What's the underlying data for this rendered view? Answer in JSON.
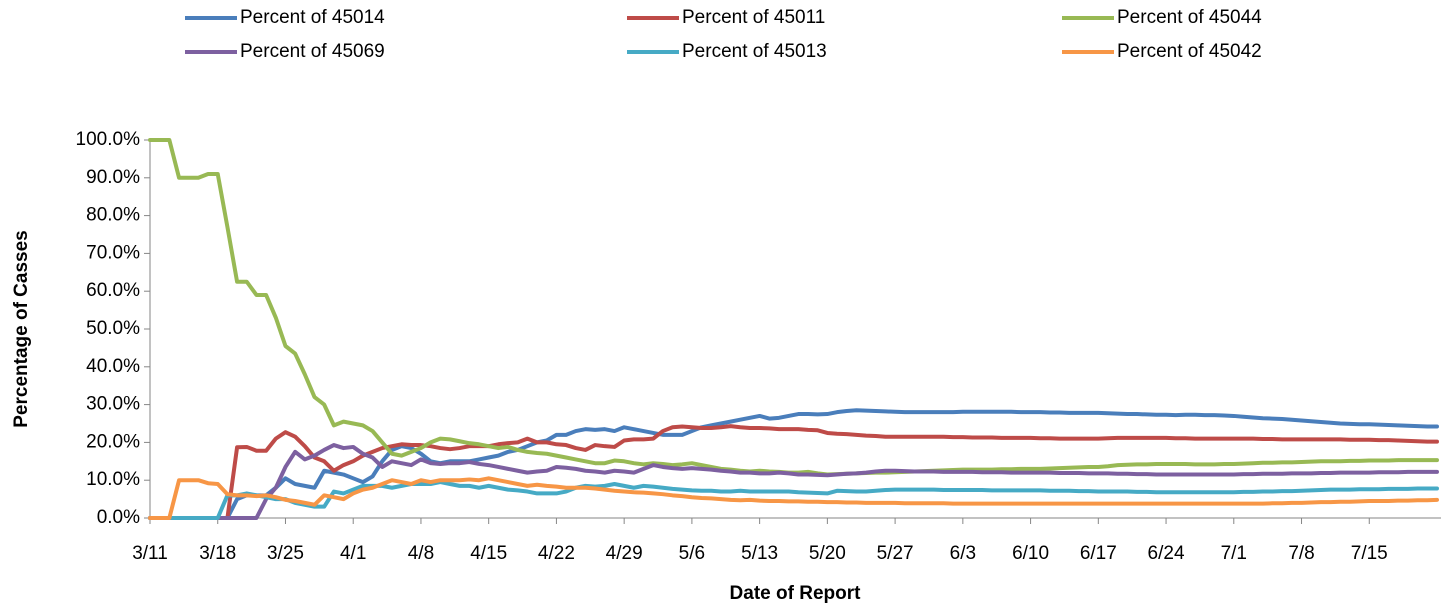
{
  "chart_data": {
    "type": "line",
    "x_label": "Date of Report",
    "y_label": "Percentage of Casses",
    "legend": "top",
    "grid": false,
    "ylim": [
      0,
      100
    ],
    "yticks": [
      {
        "value": 0,
        "label": "0.0%"
      },
      {
        "value": 10,
        "label": "10.0%"
      },
      {
        "value": 20,
        "label": "20.0%"
      },
      {
        "value": 30,
        "label": "30.0%"
      },
      {
        "value": 40,
        "label": "40.0%"
      },
      {
        "value": 50,
        "label": "50.0%"
      },
      {
        "value": 60,
        "label": "60.0%"
      },
      {
        "value": 70,
        "label": "70.0%"
      },
      {
        "value": 80,
        "label": "80.0%"
      },
      {
        "value": 90,
        "label": "90.0%"
      },
      {
        "value": 100,
        "label": "100.0%"
      }
    ],
    "categories": [
      "3/11",
      null,
      null,
      null,
      null,
      null,
      null,
      "3/18",
      null,
      null,
      null,
      null,
      null,
      null,
      "3/25",
      null,
      null,
      null,
      null,
      null,
      null,
      "4/1",
      null,
      null,
      null,
      null,
      null,
      null,
      "4/8",
      null,
      null,
      null,
      null,
      null,
      null,
      "4/15",
      null,
      null,
      null,
      null,
      null,
      null,
      "4/22",
      null,
      null,
      null,
      null,
      null,
      null,
      "4/29",
      null,
      null,
      null,
      null,
      null,
      null,
      "5/6",
      null,
      null,
      null,
      null,
      null,
      null,
      "5/13",
      null,
      null,
      null,
      null,
      null,
      null,
      "5/20",
      null,
      null,
      null,
      null,
      null,
      null,
      "5/27",
      null,
      null,
      null,
      null,
      null,
      null,
      "6/3",
      null,
      null,
      null,
      null,
      null,
      null,
      "6/10",
      null,
      null,
      null,
      null,
      null,
      null,
      "6/17",
      null,
      null,
      null,
      null,
      null,
      null,
      "6/24",
      null,
      null,
      null,
      null,
      null,
      null,
      "7/1",
      null,
      null,
      null,
      null,
      null,
      null,
      "7/8",
      null,
      null,
      null,
      null,
      null,
      null,
      "7/15",
      null,
      null,
      null,
      null,
      null,
      null,
      null
    ],
    "series": [
      {
        "name": "Percent of 45014",
        "color": "#4a7ebb",
        "values": [
          0,
          0,
          0,
          0,
          0,
          0,
          0,
          0,
          0,
          5,
          6,
          6,
          6,
          8,
          10.5,
          9,
          8.5,
          8,
          12.5,
          12,
          11.5,
          10.5,
          9.5,
          11,
          15,
          18,
          19,
          18.5,
          17,
          15,
          14.5,
          15,
          15,
          15,
          15.5,
          16,
          16.5,
          17.5,
          18,
          19,
          20,
          20.5,
          22,
          22,
          23,
          23.5,
          23.3,
          23.5,
          23,
          24,
          23.5,
          23,
          22.5,
          22,
          22,
          22,
          23,
          24,
          24.5,
          25,
          25.5,
          26,
          26.5,
          27,
          26.3,
          26.5,
          27,
          27.5,
          27.5,
          27.4,
          27.5,
          28,
          28.3,
          28.5,
          28.4,
          28.3,
          28.2,
          28.1,
          28,
          28,
          28,
          28,
          28,
          28,
          28.1,
          28.1,
          28.1,
          28.1,
          28.1,
          28.1,
          28,
          28,
          28,
          27.9,
          27.9,
          27.8,
          27.8,
          27.8,
          27.8,
          27.7,
          27.6,
          27.5,
          27.5,
          27.4,
          27.3,
          27.3,
          27.2,
          27.3,
          27.3,
          27.2,
          27.2,
          27.1,
          27,
          26.8,
          26.6,
          26.4,
          26.3,
          26.2,
          26,
          25.8,
          25.6,
          25.4,
          25.2,
          25,
          24.9,
          24.8,
          24.8,
          24.7,
          24.6,
          24.5,
          24.4,
          24.3,
          24.2,
          24.2
        ]
      },
      {
        "name": "Percent of 45011",
        "color": "#be4b48",
        "values": [
          0,
          0,
          0,
          0,
          0,
          0,
          0,
          0,
          0,
          18.7,
          18.8,
          17.8,
          17.8,
          21,
          22.7,
          21.5,
          19,
          16,
          15,
          12.5,
          14,
          15,
          16.5,
          17.5,
          18.5,
          19,
          19.5,
          19.3,
          19.3,
          19,
          18.5,
          18.2,
          18.5,
          19,
          19,
          19,
          19.5,
          19.8,
          20,
          21,
          20,
          20,
          19.5,
          19.3,
          18.5,
          18,
          19.3,
          19,
          18.8,
          20.5,
          20.8,
          20.8,
          21,
          23,
          24,
          24.2,
          24,
          23.8,
          23.8,
          24,
          24.3,
          24,
          23.8,
          23.8,
          23.7,
          23.5,
          23.5,
          23.5,
          23.3,
          23.2,
          22.5,
          22.3,
          22.2,
          22,
          21.8,
          21.7,
          21.5,
          21.5,
          21.5,
          21.5,
          21.5,
          21.5,
          21.5,
          21.4,
          21.4,
          21.3,
          21.3,
          21.3,
          21.2,
          21.2,
          21.2,
          21.2,
          21.1,
          21.1,
          21,
          21,
          21,
          21,
          21,
          21.1,
          21.2,
          21.2,
          21.2,
          21.2,
          21.2,
          21.2,
          21.1,
          21.1,
          21,
          21,
          21,
          21,
          21,
          21,
          21,
          20.9,
          20.9,
          20.8,
          20.8,
          20.8,
          20.8,
          20.8,
          20.8,
          20.8,
          20.7,
          20.7,
          20.7,
          20.6,
          20.6,
          20.5,
          20.4,
          20.3,
          20.2,
          20.2
        ]
      },
      {
        "name": "Percent of 45044",
        "color": "#98b954",
        "values": [
          100,
          100,
          100,
          90,
          90,
          90,
          91,
          91,
          77,
          62.5,
          62.5,
          59,
          59,
          53,
          45.5,
          43.5,
          38,
          32,
          30,
          24.5,
          25.5,
          25,
          24.5,
          23,
          20,
          17,
          16.5,
          17.5,
          18.5,
          20,
          21,
          20.8,
          20.3,
          19.8,
          19.5,
          19,
          18.5,
          18.8,
          18,
          17.5,
          17.2,
          17,
          16.5,
          16,
          15.5,
          15,
          14.5,
          14.5,
          15.2,
          15,
          14.5,
          14.2,
          14.5,
          14.3,
          14,
          14.2,
          14.5,
          14,
          13.5,
          13,
          12.8,
          12.5,
          12.3,
          12.5,
          12.3,
          12.2,
          12,
          12,
          12.2,
          11.8,
          11.5,
          11.6,
          11.7,
          11.8,
          11.9,
          12,
          12,
          12.1,
          12.2,
          12.3,
          12.4,
          12.5,
          12.6,
          12.7,
          12.8,
          12.8,
          12.8,
          12.8,
          12.9,
          12.9,
          13,
          13,
          13,
          13.1,
          13.2,
          13.3,
          13.4,
          13.5,
          13.5,
          13.7,
          14,
          14.1,
          14.2,
          14.2,
          14.3,
          14.3,
          14.3,
          14.3,
          14.2,
          14.2,
          14.2,
          14.3,
          14.3,
          14.4,
          14.5,
          14.6,
          14.6,
          14.7,
          14.7,
          14.8,
          14.9,
          15,
          15,
          15,
          15.1,
          15.1,
          15.2,
          15.2,
          15.2,
          15.3,
          15.3,
          15.3,
          15.3,
          15.3
        ]
      },
      {
        "name": "Percent of 45069",
        "color": "#7d60a0",
        "values": [
          0,
          0,
          0,
          0,
          0,
          0,
          0,
          0,
          0,
          0,
          0,
          0,
          5,
          8,
          13.5,
          17.5,
          15.5,
          16.5,
          18,
          19.3,
          18.5,
          18.8,
          17,
          16,
          13.5,
          15,
          14.5,
          14,
          15.5,
          14.5,
          14.3,
          14.5,
          14.5,
          14.8,
          14.3,
          14,
          13.5,
          13,
          12.5,
          12,
          12.3,
          12.5,
          13.5,
          13.3,
          13,
          12.5,
          12.3,
          12,
          12.5,
          12.3,
          12,
          13,
          14,
          13.5,
          13.2,
          13,
          13.2,
          13,
          12.8,
          12.5,
          12.3,
          12,
          12,
          11.8,
          11.8,
          12,
          11.8,
          11.5,
          11.5,
          11.4,
          11.3,
          11.5,
          11.7,
          11.8,
          12,
          12.3,
          12.5,
          12.5,
          12.4,
          12.3,
          12.3,
          12.3,
          12.2,
          12.2,
          12.2,
          12.2,
          12.1,
          12.1,
          12.1,
          12,
          12,
          12,
          12,
          12,
          11.9,
          11.9,
          11.9,
          11.8,
          11.8,
          11.8,
          11.7,
          11.7,
          11.6,
          11.6,
          11.5,
          11.5,
          11.5,
          11.5,
          11.5,
          11.5,
          11.5,
          11.5,
          11.5,
          11.6,
          11.6,
          11.7,
          11.7,
          11.7,
          11.8,
          11.8,
          11.8,
          11.9,
          11.9,
          12,
          12,
          12,
          12,
          12.1,
          12.1,
          12.1,
          12.2,
          12.2,
          12.2,
          12.2
        ]
      },
      {
        "name": "Percent of 45013",
        "color": "#46aac5",
        "values": [
          0,
          0,
          0,
          0,
          0,
          0,
          0,
          0,
          6,
          6,
          6.5,
          6,
          5.5,
          5,
          5,
          4,
          3.5,
          3,
          3,
          7,
          6.5,
          7.5,
          8.5,
          8.5,
          8.5,
          8,
          8.5,
          9,
          9,
          9,
          9.5,
          9,
          8.5,
          8.5,
          8,
          8.5,
          8,
          7.5,
          7.3,
          7,
          6.5,
          6.5,
          6.5,
          7,
          8,
          8.5,
          8.3,
          8.5,
          9,
          8.5,
          8,
          8.5,
          8.3,
          8,
          7.7,
          7.5,
          7.3,
          7.2,
          7.2,
          7,
          7,
          7.2,
          7,
          7,
          7,
          7,
          7,
          6.8,
          6.7,
          6.6,
          6.5,
          7.2,
          7.1,
          7,
          7,
          7.2,
          7.4,
          7.5,
          7.5,
          7.5,
          7.5,
          7.5,
          7.4,
          7.4,
          7.4,
          7.4,
          7.4,
          7.3,
          7.3,
          7.3,
          7.3,
          7.3,
          7.3,
          7.2,
          7.2,
          7.2,
          7.1,
          7.1,
          7,
          7,
          7,
          7,
          6.9,
          6.9,
          6.8,
          6.8,
          6.8,
          6.8,
          6.8,
          6.8,
          6.8,
          6.8,
          6.8,
          6.9,
          6.9,
          7,
          7,
          7.1,
          7.1,
          7.2,
          7.3,
          7.4,
          7.5,
          7.5,
          7.5,
          7.6,
          7.6,
          7.6,
          7.7,
          7.7,
          7.7,
          7.8,
          7.8,
          7.8
        ]
      },
      {
        "name": "Percent of 45042",
        "color": "#f79646",
        "values": [
          0,
          0,
          0,
          10,
          10,
          10,
          9.2,
          9,
          6.3,
          6,
          6,
          5.8,
          6,
          5.5,
          4.8,
          4.5,
          4,
          3.5,
          6,
          5.5,
          5,
          6.5,
          7.5,
          8,
          9,
          10,
          9.5,
          9,
          10,
          9.5,
          10,
          10,
          10,
          10.2,
          10,
          10.5,
          10,
          9.5,
          9,
          8.5,
          8.8,
          8.5,
          8.3,
          8,
          8,
          8,
          7.8,
          7.5,
          7.2,
          7,
          6.8,
          6.7,
          6.5,
          6.3,
          6,
          5.8,
          5.5,
          5.3,
          5.2,
          5,
          4.8,
          4.7,
          4.8,
          4.6,
          4.5,
          4.5,
          4.4,
          4.4,
          4.3,
          4.3,
          4.2,
          4.2,
          4.1,
          4.1,
          4,
          4,
          4,
          4,
          3.9,
          3.9,
          3.9,
          3.9,
          3.9,
          3.8,
          3.8,
          3.8,
          3.8,
          3.8,
          3.8,
          3.8,
          3.8,
          3.8,
          3.8,
          3.8,
          3.8,
          3.8,
          3.8,
          3.8,
          3.8,
          3.8,
          3.8,
          3.8,
          3.8,
          3.8,
          3.8,
          3.8,
          3.8,
          3.8,
          3.8,
          3.8,
          3.8,
          3.8,
          3.8,
          3.8,
          3.8,
          3.8,
          3.9,
          3.9,
          4,
          4,
          4.1,
          4.2,
          4.2,
          4.3,
          4.3,
          4.4,
          4.5,
          4.5,
          4.5,
          4.6,
          4.6,
          4.7,
          4.7,
          4.8
        ]
      }
    ]
  }
}
